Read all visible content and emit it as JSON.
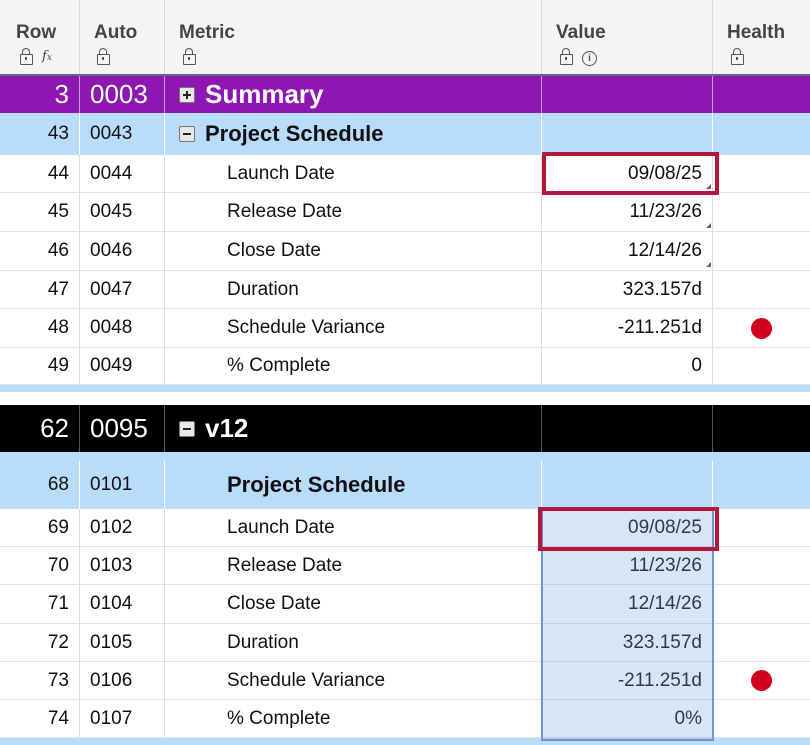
{
  "columns": {
    "row": "Row",
    "auto": "Auto",
    "metric": "Metric",
    "value": "Value",
    "health": "Health",
    "row_icons": [
      "lock-icon",
      "fx-icon"
    ],
    "value_icons": [
      "lock-icon",
      "info-icon"
    ]
  },
  "colors": {
    "summary_row": "#8e16b2",
    "group_row": "#b9dcfb",
    "version_row": "#000000",
    "status_red": "#d1001c",
    "selection_border": "#b5163b"
  },
  "rows": [
    {
      "row": "3",
      "auto": "0003",
      "metric": "Summary",
      "value": "",
      "style": "summary",
      "toggle": "plus"
    },
    {
      "row": "43",
      "auto": "0043",
      "metric": "Project Schedule",
      "value": "",
      "style": "group",
      "toggle": "minus"
    },
    {
      "row": "44",
      "auto": "0044",
      "metric": "Launch Date",
      "value": "09/08/25",
      "style": "plain",
      "selected": true
    },
    {
      "row": "45",
      "auto": "0045",
      "metric": "Release Date",
      "value": "11/23/26",
      "style": "plain"
    },
    {
      "row": "46",
      "auto": "0046",
      "metric": "Close Date",
      "value": "12/14/26",
      "style": "plain"
    },
    {
      "row": "47",
      "auto": "0047",
      "metric": "Duration",
      "value": "323.157d",
      "style": "plain"
    },
    {
      "row": "48",
      "auto": "0048",
      "metric": "Schedule Variance",
      "value": "-211.251d",
      "style": "plain",
      "health": "red"
    },
    {
      "row": "49",
      "auto": "0049",
      "metric": "% Complete",
      "value": "0",
      "style": "plain"
    },
    {
      "row": "62",
      "auto": "0095",
      "metric": "v12",
      "value": "",
      "style": "version",
      "toggle": "minus"
    },
    {
      "row": "68",
      "auto": "0101",
      "metric": "Project Schedule",
      "value": "",
      "style": "group"
    },
    {
      "row": "69",
      "auto": "0102",
      "metric": "Launch Date",
      "value": "09/08/25",
      "style": "plain",
      "selected": true
    },
    {
      "row": "70",
      "auto": "0103",
      "metric": "Release Date",
      "value": "11/23/26",
      "style": "plain"
    },
    {
      "row": "71",
      "auto": "0104",
      "metric": "Close Date",
      "value": "12/14/26",
      "style": "plain"
    },
    {
      "row": "72",
      "auto": "0105",
      "metric": "Duration",
      "value": "323.157d",
      "style": "plain"
    },
    {
      "row": "73",
      "auto": "0106",
      "metric": "Schedule Variance",
      "value": "-211.251d",
      "style": "plain",
      "health": "red"
    },
    {
      "row": "74",
      "auto": "0107",
      "metric": "% Complete",
      "value": "0%",
      "style": "plain"
    }
  ]
}
